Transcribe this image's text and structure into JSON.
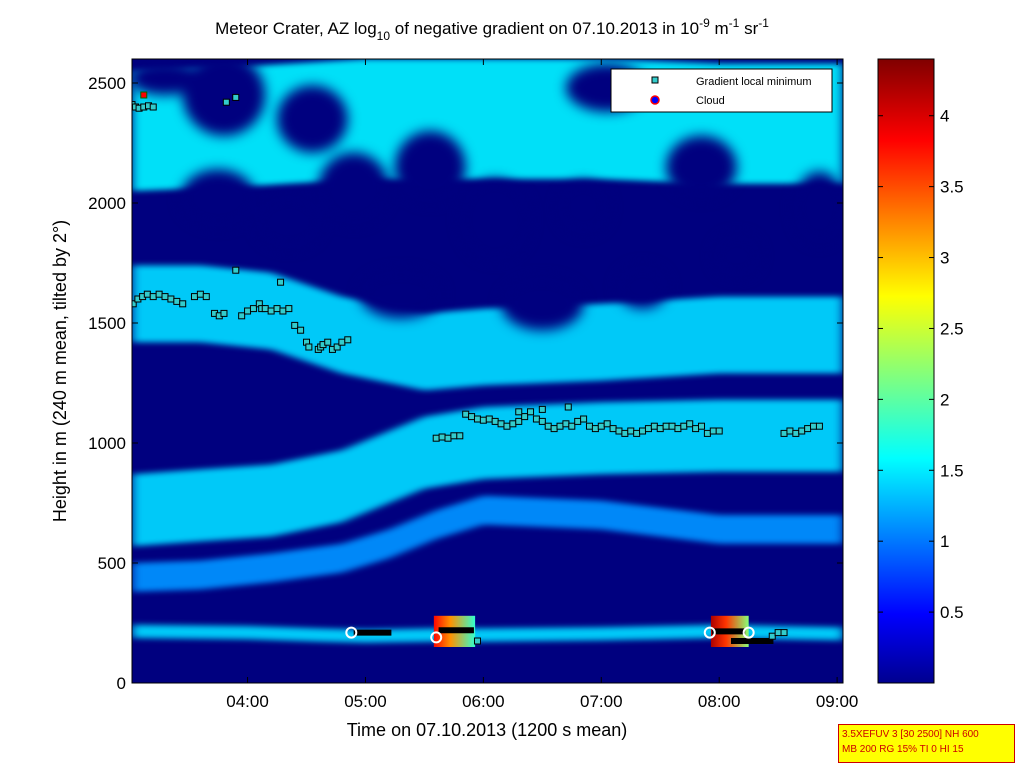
{
  "chart_data": {
    "type": "heatmap",
    "title": {
      "part1": "Meteor Crater, AZ log",
      "sub": "10",
      "part2": " of negative gradient on 07.10.2013 in 10",
      "sup1": "-9",
      "part3": " m",
      "sup2": "-1",
      "part4": " sr",
      "sup3": "-1"
    },
    "xlabel": "Time on 07.10.2013 (1200 s mean)",
    "ylabel": "Height in m (240 m mean, tilted by 2°)",
    "x_unit": "hours",
    "xlim": [
      3.02,
      9.05
    ],
    "ylim": [
      0,
      2600
    ],
    "x_ticks": [
      {
        "v": 4,
        "label": "04:00"
      },
      {
        "v": 5,
        "label": "05:00"
      },
      {
        "v": 6,
        "label": "06:00"
      },
      {
        "v": 7,
        "label": "07:00"
      },
      {
        "v": 8,
        "label": "08:00"
      },
      {
        "v": 9,
        "label": "09:00"
      }
    ],
    "y_ticks": [
      {
        "v": 0,
        "label": "0"
      },
      {
        "v": 500,
        "label": "500"
      },
      {
        "v": 1000,
        "label": "1000"
      },
      {
        "v": 1500,
        "label": "1500"
      },
      {
        "v": 2000,
        "label": "2000"
      },
      {
        "v": 2500,
        "label": "2500"
      }
    ],
    "colorbar": {
      "range": [
        0,
        4.4
      ],
      "colormap": "jet",
      "ticks": [
        {
          "v": 0.5,
          "label": "0.5"
        },
        {
          "v": 1,
          "label": "1"
        },
        {
          "v": 1.5,
          "label": "1.5"
        },
        {
          "v": 2,
          "label": "2"
        },
        {
          "v": 2.5,
          "label": "2.5"
        },
        {
          "v": 3,
          "label": "3"
        },
        {
          "v": 3.5,
          "label": "3.5"
        },
        {
          "v": 4,
          "label": "4"
        }
      ]
    },
    "legend": {
      "placement": "top-right",
      "entries": [
        {
          "label": "Gradient local minimum",
          "marker": "square",
          "color": "#33cccc"
        },
        {
          "label": "Cloud",
          "marker": "circle",
          "color": "#0000ff",
          "edge": "#ff0000"
        }
      ]
    },
    "layers": [
      {
        "name": "surface layer",
        "x": [
          3.02,
          4.0,
          4.6,
          5.0,
          5.6,
          6.0,
          7.0,
          8.0,
          8.5,
          9.05
        ],
        "y": [
          215,
          210,
          200,
          195,
          200,
          200,
          205,
          215,
          210,
          205
        ],
        "thick": 55,
        "value": 1.4
      },
      {
        "name": "mid band",
        "x": [
          3.02,
          3.6,
          4.2,
          4.8,
          5.5,
          6.0,
          7.0,
          8.0,
          8.6,
          9.05
        ],
        "y": [
          720,
          740,
          760,
          820,
          960,
          1000,
          1020,
          1030,
          1030,
          1030
        ],
        "thick": 300,
        "value": 1.4
      },
      {
        "name": "lower band",
        "x": [
          3.02,
          3.6,
          4.2,
          4.8,
          5.2,
          5.6,
          6.0,
          7.0,
          8.0,
          8.6,
          9.05
        ],
        "y": [
          440,
          450,
          480,
          520,
          580,
          660,
          720,
          700,
          640,
          640,
          640
        ],
        "thick": 120,
        "value": 1.1
      },
      {
        "name": "upper band",
        "x": [
          3.02,
          3.6,
          4.2,
          4.8,
          5.5,
          6.0,
          7.0,
          8.0,
          8.6,
          9.05
        ],
        "y": [
          1580,
          1580,
          1550,
          1450,
          1380,
          1400,
          1420,
          1450,
          1450,
          1450
        ],
        "thick": 320,
        "value": 1.4
      },
      {
        "name": "top band",
        "x": [
          3.02,
          4.0,
          5.0,
          6.0,
          7.0,
          8.0,
          9.05
        ],
        "y": [
          2300,
          2320,
          2350,
          2350,
          2350,
          2330,
          2330
        ],
        "thick": 500,
        "value": 1.5
      }
    ],
    "holes": [
      {
        "x": 3.8,
        "y": 2450,
        "rx": 0.35,
        "ry": 170
      },
      {
        "x": 4.55,
        "y": 2350,
        "rx": 0.3,
        "ry": 140
      },
      {
        "x": 3.75,
        "y": 2020,
        "rx": 0.32,
        "ry": 120
      },
      {
        "x": 4.35,
        "y": 1920,
        "rx": 0.28,
        "ry": 110
      },
      {
        "x": 4.9,
        "y": 2060,
        "rx": 0.3,
        "ry": 150
      },
      {
        "x": 5.55,
        "y": 2150,
        "rx": 0.3,
        "ry": 150
      },
      {
        "x": 6.1,
        "y": 1930,
        "rx": 0.3,
        "ry": 170
      },
      {
        "x": 6.85,
        "y": 1980,
        "rx": 0.22,
        "ry": 110
      },
      {
        "x": 7.85,
        "y": 2150,
        "rx": 0.3,
        "ry": 130
      },
      {
        "x": 8.15,
        "y": 1780,
        "rx": 0.2,
        "ry": 90
      },
      {
        "x": 8.85,
        "y": 1980,
        "rx": 0.22,
        "ry": 150
      },
      {
        "x": 5.3,
        "y": 1620,
        "rx": 0.35,
        "ry": 100
      },
      {
        "x": 6.5,
        "y": 1580,
        "rx": 0.35,
        "ry": 110
      },
      {
        "x": 7.35,
        "y": 1650,
        "rx": 0.22,
        "ry": 90
      },
      {
        "x": 3.3,
        "y": 2520,
        "rx": 0.3,
        "ry": 70
      },
      {
        "x": 7.05,
        "y": 2480,
        "rx": 0.35,
        "ry": 100
      }
    ],
    "hot_patches": [
      {
        "x0": 5.58,
        "x1": 5.93,
        "y0": 150,
        "y1": 280,
        "value": 3.2
      },
      {
        "x0": 7.93,
        "x1": 8.25,
        "y0": 150,
        "y1": 280,
        "value": 3.6
      }
    ],
    "gradient_minimum": {
      "x": [
        3.02,
        3.05,
        3.08,
        3.12,
        3.16,
        3.2,
        3.03,
        3.07,
        3.11,
        3.15,
        3.2,
        3.25,
        3.3,
        3.35,
        3.4,
        3.45,
        3.55,
        3.6,
        3.65,
        3.72,
        3.76,
        3.8,
        3.95,
        4.0,
        4.05,
        4.1,
        4.12,
        4.15,
        4.2,
        4.25,
        4.3,
        4.35,
        4.4,
        4.45,
        4.5,
        4.52,
        4.6,
        4.62,
        4.64,
        4.68,
        4.72,
        4.76,
        4.8,
        4.85,
        3.9,
        4.28,
        3.82,
        3.9,
        5.6,
        5.65,
        5.7,
        5.75,
        5.8,
        5.85,
        5.9,
        5.95,
        6.0,
        6.05,
        6.1,
        6.15,
        6.2,
        6.25,
        6.3,
        6.35,
        6.4,
        6.45,
        6.5,
        6.55,
        6.6,
        6.65,
        6.7,
        6.75,
        6.8,
        6.85,
        6.9,
        6.95,
        7.0,
        7.05,
        7.1,
        7.15,
        7.2,
        7.25,
        7.3,
        7.35,
        7.4,
        7.45,
        7.5,
        7.55,
        7.6,
        7.65,
        7.7,
        7.75,
        7.8,
        7.85,
        7.9,
        7.95,
        8.0,
        6.5,
        6.3,
        6.72,
        8.55,
        8.6,
        8.65,
        8.7,
        8.75,
        8.8,
        8.85,
        5.95,
        8.45,
        8.5,
        8.55
      ],
      "y": [
        2410,
        2400,
        2395,
        2400,
        2405,
        2400,
        1580,
        1600,
        1610,
        1620,
        1610,
        1620,
        1610,
        1600,
        1590,
        1580,
        1610,
        1620,
        1610,
        1540,
        1530,
        1540,
        1530,
        1550,
        1560,
        1580,
        1560,
        1560,
        1550,
        1560,
        1550,
        1560,
        1490,
        1470,
        1420,
        1400,
        1390,
        1400,
        1410,
        1420,
        1390,
        1400,
        1420,
        1430,
        1720,
        1670,
        2420,
        2440,
        1020,
        1025,
        1020,
        1030,
        1030,
        1120,
        1110,
        1100,
        1095,
        1100,
        1090,
        1080,
        1070,
        1080,
        1090,
        1110,
        1130,
        1100,
        1090,
        1070,
        1060,
        1070,
        1080,
        1070,
        1090,
        1100,
        1070,
        1060,
        1070,
        1080,
        1060,
        1050,
        1040,
        1050,
        1040,
        1050,
        1060,
        1070,
        1060,
        1070,
        1070,
        1060,
        1070,
        1080,
        1060,
        1070,
        1040,
        1050,
        1050,
        1140,
        1130,
        1150,
        1040,
        1050,
        1040,
        1050,
        1060,
        1070,
        1070,
        175,
        195,
        210,
        210
      ]
    },
    "cloud_markers": {
      "x": [
        3.12,
        4.88,
        5.6,
        7.92,
        8.25
      ],
      "y": [
        2450,
        210,
        190,
        210,
        210
      ]
    },
    "cloud_segments": [
      {
        "x0": 4.9,
        "x1": 5.22,
        "y": 210
      },
      {
        "x0": 5.62,
        "x1": 5.92,
        "y": 220
      },
      {
        "x0": 7.94,
        "x1": 8.22,
        "y": 215
      },
      {
        "x0": 8.1,
        "x1": 8.46,
        "y": 175
      }
    ]
  },
  "info_box": {
    "line1": "3.5XEFUV 3 [30 2500] NH 600",
    "line2": "MB 200 RG 15% TI 0 HI 15"
  }
}
